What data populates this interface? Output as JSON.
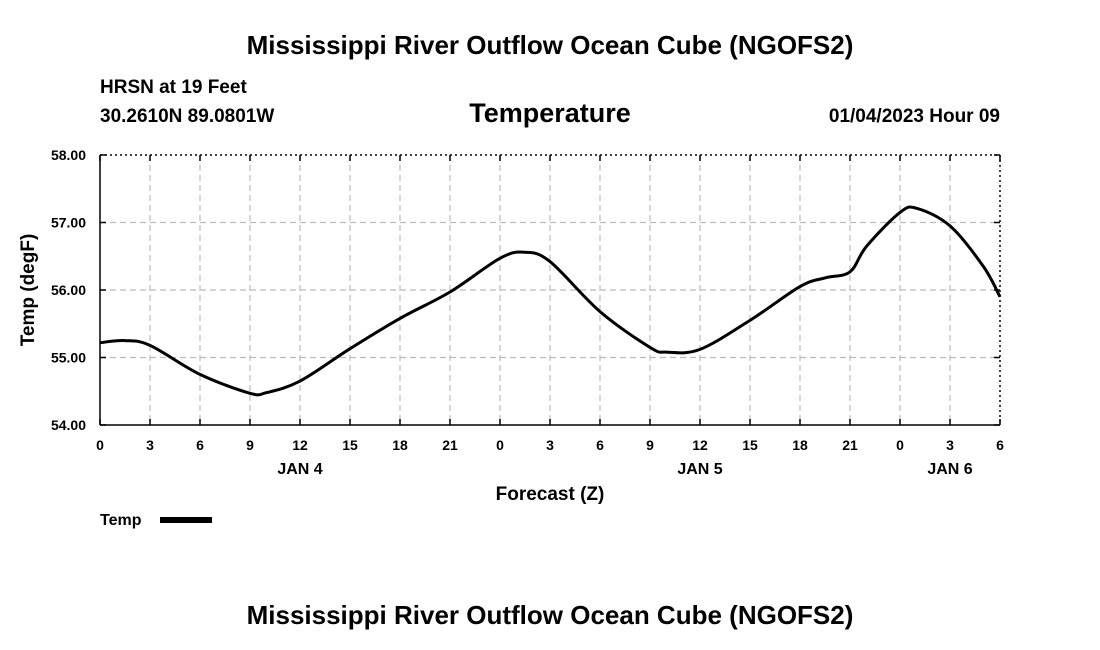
{
  "page": {
    "title_top": "Mississippi River Outflow Ocean Cube (NGOFS2)",
    "title_bottom": "Mississippi River Outflow Ocean Cube (NGOFS2)",
    "station": "HRSN at 19 Feet",
    "coords": "30.2610N  89.0801W",
    "datetime": "01/04/2023 Hour 09"
  },
  "chart_data": {
    "type": "line",
    "title": "Temperature",
    "xlabel": "Forecast (Z)",
    "ylabel": "Temp (degF)",
    "ylim": [
      54.0,
      58.0
    ],
    "xlim": [
      0,
      54
    ],
    "yticks": [
      "54.00",
      "55.00",
      "56.00",
      "57.00",
      "58.00"
    ],
    "xtick_labels": [
      "0",
      "3",
      "6",
      "9",
      "12",
      "15",
      "18",
      "21",
      "0",
      "3",
      "6",
      "9",
      "12",
      "15",
      "18",
      "21",
      "0",
      "3",
      "6"
    ],
    "day_labels": [
      {
        "label": "JAN 4",
        "hour": 12
      },
      {
        "label": "JAN 5",
        "hour": 36
      },
      {
        "label": "JAN 6",
        "hour": 51
      }
    ],
    "grid": true,
    "legend": {
      "label": "Temp",
      "placement": "bottom-left"
    },
    "series": [
      {
        "name": "Temp",
        "color": "#000000",
        "x": [
          0,
          1.5,
          3,
          6,
          9,
          10,
          12,
          15,
          18,
          21,
          24,
          25.5,
          27,
          30,
          33,
          34,
          36,
          39,
          42,
          43.5,
          45,
          46,
          48,
          49,
          51,
          53,
          54
        ],
        "y": [
          55.22,
          55.25,
          55.18,
          54.75,
          54.47,
          54.48,
          54.65,
          55.13,
          55.58,
          55.97,
          56.47,
          56.56,
          56.42,
          55.68,
          55.15,
          55.08,
          55.12,
          55.55,
          56.05,
          56.18,
          56.27,
          56.65,
          57.15,
          57.21,
          56.95,
          56.35,
          55.9
        ]
      }
    ]
  }
}
